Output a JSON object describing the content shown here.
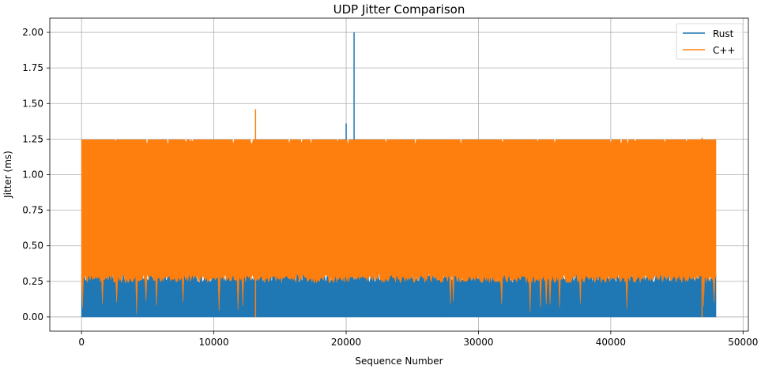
{
  "chart_data": {
    "type": "line",
    "title": "UDP Jitter Comparison",
    "xlabel": "Sequence Number",
    "ylabel": "Jitter (ms)",
    "xlim": [
      -2400,
      50400
    ],
    "ylim": [
      -0.1,
      2.1
    ],
    "xticks": [
      0,
      10000,
      20000,
      30000,
      40000,
      50000
    ],
    "xtick_labels": [
      "0",
      "10000",
      "20000",
      "30000",
      "40000",
      "50000"
    ],
    "yticks": [
      0.0,
      0.25,
      0.5,
      0.75,
      1.0,
      1.25,
      1.5,
      1.75,
      2.0
    ],
    "ytick_labels": [
      "0.00",
      "0.25",
      "0.50",
      "0.75",
      "1.00",
      "1.25",
      "1.50",
      "1.75",
      "2.00"
    ],
    "grid": true,
    "legend_position": "top-right",
    "series": [
      {
        "name": "Rust",
        "color": "#1f77b4",
        "x_range": [
          0,
          48000
        ],
        "band_min": 0.0,
        "band_max": 0.3,
        "spikes": [
          {
            "x": 20000,
            "y": 1.36
          },
          {
            "x": 20600,
            "y": 2.0
          },
          {
            "x": 13100,
            "y": 0.35
          },
          {
            "x": 27500,
            "y": 0.42
          }
        ]
      },
      {
        "name": "C++",
        "color": "#ff7f0e",
        "x_range": [
          0,
          48000
        ],
        "band_min": 0.3,
        "band_max": 1.245,
        "spikes": [
          {
            "x": 13150,
            "y": 1.46
          },
          {
            "x": 46900,
            "y": 1.26
          }
        ]
      }
    ]
  }
}
